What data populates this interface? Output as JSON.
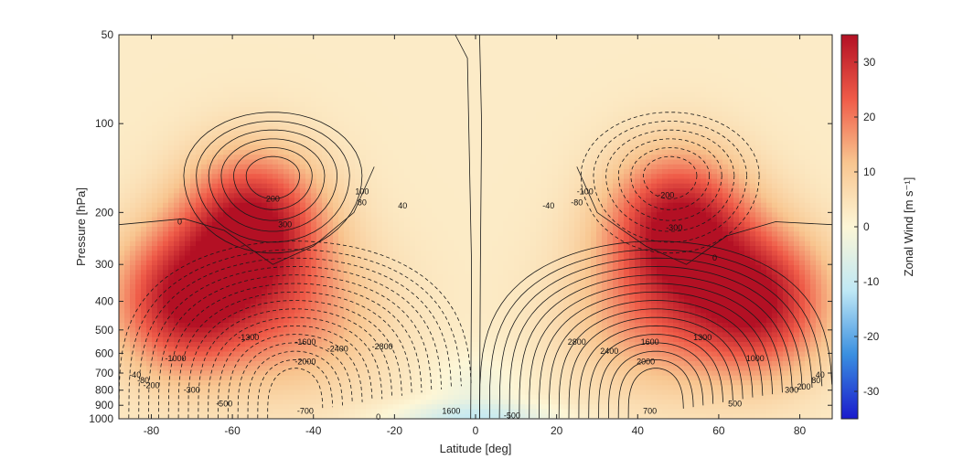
{
  "chart_data": {
    "type": "heatmap",
    "title": "",
    "xlabel": "Latitude [deg]",
    "ylabel": "Pressure [hPa]",
    "xlim": [
      -88,
      88
    ],
    "ylim": [
      1000,
      50
    ],
    "yscale": "log",
    "x_ticks": [
      "-80",
      "-60",
      "-40",
      "-20",
      "0",
      "20",
      "40",
      "60",
      "80"
    ],
    "x_tick_values": [
      -80,
      -60,
      -40,
      -20,
      0,
      20,
      40,
      60,
      80
    ],
    "y_ticks": [
      "50",
      "100",
      "200",
      "300",
      "400",
      "500",
      "600",
      "700",
      "800",
      "900",
      "1000"
    ],
    "y_tick_values": [
      50,
      100,
      200,
      300,
      400,
      500,
      600,
      700,
      800,
      900,
      1000
    ],
    "colorbar": {
      "label": "Zonal Wind [m s⁻¹]",
      "range": [
        -35,
        35
      ],
      "ticks": [
        "30",
        "20",
        "10",
        "0",
        "-10",
        "-20",
        "-30"
      ],
      "tick_values": [
        30,
        20,
        10,
        0,
        -10,
        -20,
        -30
      ],
      "colormap": [
        "#1a1acc",
        "#3a8fe0",
        "#bfe8f5",
        "#fdf6d6",
        "#f8c58f",
        "#ef5b48",
        "#b31024"
      ]
    },
    "wind_jets": [
      {
        "lat": -55,
        "pressure": 220,
        "peak": 32
      },
      {
        "lat": -72,
        "pressure": 400,
        "peak": 30
      },
      {
        "lat": 50,
        "pressure": 220,
        "peak": 32
      },
      {
        "lat": 70,
        "pressure": 400,
        "peak": 30
      }
    ],
    "contour_labels": [
      {
        "text": "200",
        "lat": -50,
        "pressure": 180
      },
      {
        "text": "300",
        "lat": -47,
        "pressure": 220
      },
      {
        "text": "100",
        "lat": -28,
        "pressure": 170
      },
      {
        "text": "80",
        "lat": -28,
        "pressure": 185
      },
      {
        "text": "40",
        "lat": -18,
        "pressure": 190
      },
      {
        "text": "0",
        "lat": -73,
        "pressure": 215
      },
      {
        "text": "-1000",
        "lat": -74,
        "pressure": 625
      },
      {
        "text": "-1300",
        "lat": -56,
        "pressure": 530
      },
      {
        "text": "-1600",
        "lat": -42,
        "pressure": 550
      },
      {
        "text": "-2000",
        "lat": -42,
        "pressure": 640
      },
      {
        "text": "-2400",
        "lat": -34,
        "pressure": 580
      },
      {
        "text": "-2800",
        "lat": -23,
        "pressure": 570
      },
      {
        "text": "-200",
        "lat": -80,
        "pressure": 770
      },
      {
        "text": "-300",
        "lat": -70,
        "pressure": 800
      },
      {
        "text": "-500",
        "lat": -62,
        "pressure": 890
      },
      {
        "text": "-700",
        "lat": -42,
        "pressure": 940
      },
      {
        "text": "-40",
        "lat": -84,
        "pressure": 710
      },
      {
        "text": "-80",
        "lat": -82,
        "pressure": 740
      },
      {
        "text": "0",
        "lat": -24,
        "pressure": 985
      },
      {
        "text": "-100",
        "lat": 27,
        "pressure": 170
      },
      {
        "text": "-80",
        "lat": 25,
        "pressure": 185
      },
      {
        "text": "-40",
        "lat": 18,
        "pressure": 190
      },
      {
        "text": "-200",
        "lat": 47,
        "pressure": 175
      },
      {
        "text": "-300",
        "lat": 49,
        "pressure": 225
      },
      {
        "text": "0",
        "lat": 59,
        "pressure": 285
      },
      {
        "text": "2800",
        "lat": 25,
        "pressure": 550
      },
      {
        "text": "2400",
        "lat": 33,
        "pressure": 590
      },
      {
        "text": "1600",
        "lat": 43,
        "pressure": 550
      },
      {
        "text": "2000",
        "lat": 42,
        "pressure": 640
      },
      {
        "text": "1300",
        "lat": 56,
        "pressure": 530
      },
      {
        "text": "1000",
        "lat": 69,
        "pressure": 625
      },
      {
        "text": "300",
        "lat": 78,
        "pressure": 800
      },
      {
        "text": "200",
        "lat": 81,
        "pressure": 780
      },
      {
        "text": "500",
        "lat": 64,
        "pressure": 890
      },
      {
        "text": "700",
        "lat": 43,
        "pressure": 940
      },
      {
        "text": "40",
        "lat": 85,
        "pressure": 710
      },
      {
        "text": "80",
        "lat": 84,
        "pressure": 740
      },
      {
        "text": "1600",
        "lat": -6,
        "pressure": 940
      },
      {
        "text": "-500",
        "lat": 9,
        "pressure": 975
      }
    ],
    "grid": false,
    "legend": "none"
  }
}
